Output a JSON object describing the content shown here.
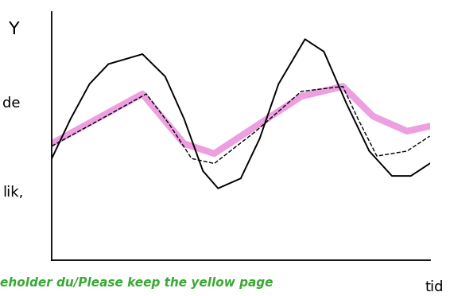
{
  "chart_data": {
    "type": "line",
    "y_label": "Y",
    "x_label": "tid",
    "annotations": [
      "de",
      "lik,"
    ],
    "footer": {
      "text": "eholder du/Please keep the yellow page",
      "color": "#3aa935"
    },
    "xlim": [
      0,
      100
    ],
    "ylim": [
      0,
      100
    ],
    "tick_labels": false,
    "grid": false,
    "series": [
      {
        "color": "#000000",
        "line_style": "solid",
        "x": [
          0,
          5,
          10,
          15,
          24,
          30,
          35,
          40,
          44,
          50,
          55,
          60,
          67,
          72,
          78,
          84,
          90,
          95,
          100
        ],
        "values": [
          41,
          57,
          71,
          79,
          83,
          74,
          57,
          36,
          29,
          33,
          49,
          71,
          89,
          84,
          63,
          44,
          34,
          34,
          39
        ]
      },
      {
        "color": "#000000",
        "line_style": "dashed",
        "x": [
          0,
          12,
          25,
          31,
          37,
          43,
          54,
          66,
          77,
          81,
          86,
          94,
          100
        ],
        "values": [
          46,
          56,
          67,
          55,
          41,
          39,
          52,
          68,
          70,
          57,
          42,
          44,
          50
        ]
      },
      {
        "color": "#e87fd6",
        "line_style": "solid",
        "x": [
          0,
          12,
          24,
          35,
          43,
          54,
          66,
          77,
          85,
          94,
          100
        ],
        "values": [
          47,
          57,
          67,
          47,
          43,
          54,
          66,
          70,
          58,
          52,
          54
        ]
      }
    ]
  }
}
